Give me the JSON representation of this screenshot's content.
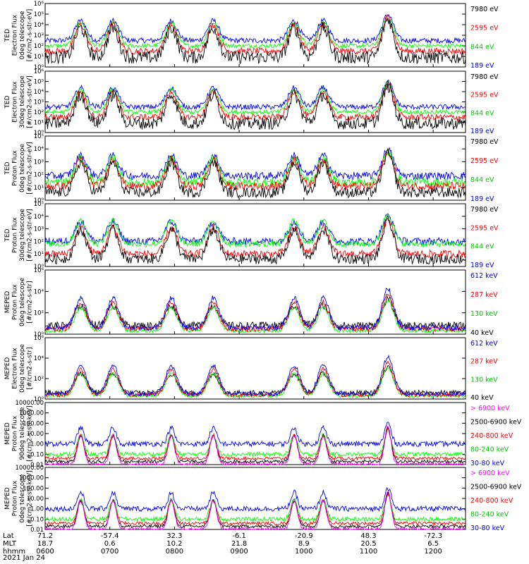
{
  "chart_data": [
    {
      "type": "line",
      "ylabel": [
        "TED",
        "Electron Flux",
        "0deg telescope",
        "[#/cm2-s-str-eV]"
      ],
      "yscale": "log",
      "ylim": [
        1,
        1000000
      ],
      "tick_labels": [
        "10⁰",
        "10¹",
        "10²",
        "10³",
        "10⁴",
        "10⁵",
        "10⁶"
      ],
      "series": [
        {
          "name": "7980 eV",
          "color": "#000000",
          "base": 0.9,
          "noise": 1.2
        },
        {
          "name": "2595 eV",
          "color": "#ff0000",
          "base": 1.5,
          "noise": 0.6
        },
        {
          "name": "844 eV",
          "color": "#00ff00",
          "base": 2.0,
          "noise": 0.4
        },
        {
          "name": "189 eV",
          "color": "#0000ff",
          "base": 2.5,
          "noise": 0.5
        }
      ]
    },
    {
      "type": "line",
      "ylabel": [
        "TED",
        "Electron Flux",
        "30deg telescope",
        "[#/cm2-s-str-eV]"
      ],
      "yscale": "log",
      "ylim": [
        1,
        1000000
      ],
      "tick_labels": [
        "10⁰",
        "10¹",
        "10²",
        "10³",
        "10⁴",
        "10⁵",
        "10⁶"
      ],
      "series": [
        {
          "name": "7980 eV",
          "color": "#000000",
          "base": 0.9,
          "noise": 1.2
        },
        {
          "name": "2595 eV",
          "color": "#ff0000",
          "base": 1.5,
          "noise": 0.6
        },
        {
          "name": "844 eV",
          "color": "#00ff00",
          "base": 2.0,
          "noise": 0.4
        },
        {
          "name": "189 eV",
          "color": "#0000ff",
          "base": 2.5,
          "noise": 0.5
        }
      ]
    },
    {
      "type": "line",
      "ylabel": [
        "TED",
        "Proton Flux",
        "0deg telescope",
        "[#/cm2-s-str-eV]"
      ],
      "yscale": "log",
      "ylim": [
        1,
        100000
      ],
      "tick_labels": [
        "10⁰",
        "10¹",
        "10²",
        "10³",
        "10⁴",
        "10⁵"
      ],
      "series": [
        {
          "name": "7980 eV",
          "color": "#000000",
          "base": 0.6,
          "noise": 0.8
        },
        {
          "name": "2595 eV",
          "color": "#ff0000",
          "base": 1.1,
          "noise": 0.6
        },
        {
          "name": "844 eV",
          "color": "#00ff00",
          "base": 1.4,
          "noise": 0.7
        },
        {
          "name": "189 eV",
          "color": "#0000ff",
          "base": 1.9,
          "noise": 0.6
        }
      ]
    },
    {
      "type": "line",
      "ylabel": [
        "TED",
        "Proton Flux",
        "30deg telescope",
        "[#/cm2-s-str-eV]"
      ],
      "yscale": "log",
      "ylim": [
        1,
        100000
      ],
      "tick_labels": [
        "10⁰",
        "10¹",
        "10²",
        "10³",
        "10⁴",
        "10⁵"
      ],
      "series": [
        {
          "name": "7980 eV",
          "color": "#000000",
          "base": 0.6,
          "noise": 0.8
        },
        {
          "name": "2595 eV",
          "color": "#ff0000",
          "base": 1.0,
          "noise": 0.6
        },
        {
          "name": "844 eV",
          "color": "#00ff00",
          "base": 1.8,
          "noise": 0.5
        },
        {
          "name": "189 eV",
          "color": "#0000ff",
          "base": 2.0,
          "noise": 0.6
        }
      ]
    },
    {
      "type": "line",
      "ylabel": [
        "MEPED",
        "Proton Flux",
        "0deg telescope",
        "[#/cm2-s-str]"
      ],
      "yscale": "log",
      "ylim": [
        1,
        1000000
      ],
      "tick_labels": [
        "10⁰",
        "10²",
        "10⁴",
        "10⁶"
      ],
      "series": [
        {
          "name": "612 keV",
          "color": "#0000ff",
          "base": 0.6,
          "noise": 0.5
        },
        {
          "name": "287 keV",
          "color": "#ff0000",
          "base": 0.5,
          "noise": 0.5
        },
        {
          "name": "130 keV",
          "color": "#00ff00",
          "base": 0.3,
          "noise": 0.3
        },
        {
          "name": "40 keV",
          "color": "#000000",
          "base": 0.8,
          "noise": 0.7
        }
      ]
    },
    {
      "type": "line",
      "ylabel": [
        "MEPED",
        "Electron Flux",
        "0deg telescope",
        "[#/cm2-s-str]"
      ],
      "yscale": "log",
      "ylim": [
        1,
        1000000
      ],
      "tick_labels": [
        "10⁰",
        "10²",
        "10⁴",
        "10⁶"
      ],
      "series": [
        {
          "name": "612 keV",
          "color": "#0000ff",
          "base": 0.5,
          "noise": 0.4
        },
        {
          "name": "287 keV",
          "color": "#ff0000",
          "base": 0.4,
          "noise": 0.4
        },
        {
          "name": "130 keV",
          "color": "#00ff00",
          "base": 0.3,
          "noise": 0.3
        },
        {
          "name": "40 keV",
          "color": "#000000",
          "base": 0.6,
          "noise": 0.5
        }
      ]
    },
    {
      "type": "line",
      "ylabel": [
        "MEPED",
        "Proton Flux",
        "90deg telescope",
        "[#/cm2-s-str-keV]"
      ],
      "yscale": "log",
      "ylim": [
        0.01,
        10000
      ],
      "tick_labels": [
        "0.01",
        "0.10",
        "1.00",
        "10.00",
        "100.00",
        "1000.00",
        "10000.00"
      ],
      "series": [
        {
          "name": "> 6900 keV",
          "color": "#ff00ff",
          "base": 0.05,
          "noise": 0.3
        },
        {
          "name": "2500-6900 keV",
          "color": "#000000",
          "base": 0.3,
          "noise": 0.3
        },
        {
          "name": "240-800 keV",
          "color": "#ff0000",
          "base": 0.6,
          "noise": 0.3
        },
        {
          "name": "80-240 keV",
          "color": "#00ff00",
          "base": 1.0,
          "noise": 0.4
        },
        {
          "name": "30-80 keV",
          "color": "#0000ff",
          "base": 2.0,
          "noise": 0.5
        }
      ]
    },
    {
      "type": "line",
      "ylabel": [
        "MEPED",
        "Proton Flux",
        "0deg telescope",
        "[#/cm2-s-str-keV]"
      ],
      "yscale": "log",
      "ylim": [
        0.01,
        10000
      ],
      "tick_labels": [
        "0.01",
        "0.10",
        "1.00",
        "10.00",
        "100.00",
        "1000.00",
        "10000.00"
      ],
      "series": [
        {
          "name": "> 6900 keV",
          "color": "#ff00ff",
          "base": 0.05,
          "noise": 0.3
        },
        {
          "name": "2500-6900 keV",
          "color": "#000000",
          "base": 0.3,
          "noise": 0.3
        },
        {
          "name": "240-800 keV",
          "color": "#ff0000",
          "base": 0.6,
          "noise": 0.3
        },
        {
          "name": "80-240 keV",
          "color": "#00ff00",
          "base": 1.0,
          "noise": 0.4
        },
        {
          "name": "30-80 keV",
          "color": "#0000ff",
          "base": 2.0,
          "noise": 0.5
        }
      ]
    }
  ],
  "x_axis": {
    "row_labels": [
      "Lat",
      "MLT",
      "hhmm"
    ],
    "ticks": [
      {
        "lat": "71.2",
        "mlt": "18.7",
        "hhmm": "0600"
      },
      {
        "lat": "-57.4",
        "mlt": "0.6",
        "hhmm": "0700"
      },
      {
        "lat": "32.3",
        "mlt": "10.2",
        "hhmm": "0800"
      },
      {
        "lat": "-6.1",
        "mlt": "21.8",
        "hhmm": "0900"
      },
      {
        "lat": "-20.9",
        "mlt": "8.9",
        "hhmm": "1000"
      },
      {
        "lat": "48.3",
        "mlt": "20.5",
        "hhmm": "1100"
      },
      {
        "lat": "-72.3",
        "mlt": "6.5",
        "hhmm": "1200"
      }
    ]
  },
  "date": "2021 Jan 24"
}
